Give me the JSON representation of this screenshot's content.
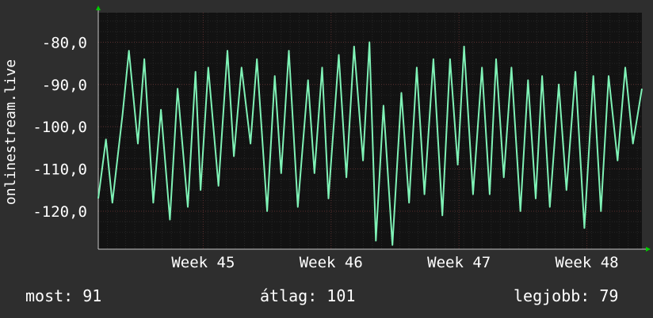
{
  "chart_data": {
    "type": "line",
    "ylabel": "onlinestream.live",
    "yticks": [
      -80,
      -90,
      -100,
      -110,
      -120
    ],
    "ytick_labels": [
      "-80,0",
      "-90,0",
      "-100,0",
      "-110,0",
      "-120,0"
    ],
    "ylim": [
      -129,
      -73
    ],
    "xlim": [
      0,
      4.25
    ],
    "xticks": [
      {
        "x": 0.82,
        "label": "Week 45"
      },
      {
        "x": 1.82,
        "label": "Week 46"
      },
      {
        "x": 2.82,
        "label": "Week 47"
      },
      {
        "x": 3.82,
        "label": "Week 48"
      }
    ],
    "grid": true,
    "colors": {
      "background": "#2e2e2e",
      "plot": "#121212",
      "line": "#7ff2b6",
      "grid": "#3c3c3c",
      "axis_arrow": "#00cc00"
    },
    "series": [
      {
        "x": [
          0.0,
          0.06,
          0.11,
          0.19,
          0.24,
          0.31,
          0.36,
          0.43,
          0.49,
          0.56,
          0.62,
          0.7,
          0.76,
          0.8,
          0.86,
          0.94,
          1.01,
          1.06,
          1.12,
          1.19,
          1.24,
          1.32,
          1.38,
          1.43,
          1.49,
          1.56,
          1.64,
          1.69,
          1.75,
          1.8,
          1.88,
          1.94,
          2.0,
          2.07,
          2.12,
          2.17,
          2.23,
          2.3,
          2.37,
          2.43,
          2.49,
          2.55,
          2.62,
          2.69,
          2.75,
          2.81,
          2.86,
          2.93,
          3.0,
          3.06,
          3.11,
          3.17,
          3.23,
          3.3,
          3.36,
          3.42,
          3.47,
          3.53,
          3.6,
          3.66,
          3.73,
          3.8,
          3.87,
          3.93,
          3.99,
          4.06,
          4.12,
          4.18,
          4.25
        ],
        "y": [
          -117,
          -103,
          -118,
          -97,
          -82,
          -104,
          -84,
          -118,
          -96,
          -122,
          -91,
          -119,
          -87,
          -115,
          -86,
          -114,
          -82,
          -107,
          -86,
          -104,
          -84,
          -120,
          -88,
          -111,
          -82,
          -119,
          -89,
          -111,
          -86,
          -117,
          -83,
          -112,
          -81,
          -108,
          -80,
          -127,
          -95,
          -128,
          -92,
          -118,
          -86,
          -116,
          -84,
          -121,
          -84,
          -109,
          -81,
          -116,
          -86,
          -116,
          -84,
          -112,
          -86,
          -120,
          -89,
          -117,
          -88,
          -119,
          -90,
          -115,
          -87,
          -124,
          -88,
          -120,
          -88,
          -108,
          -86,
          -104,
          -91
        ]
      }
    ]
  },
  "stats": {
    "current": "most: 91",
    "average": "átlag: 101",
    "best": "legjobb: 79"
  }
}
